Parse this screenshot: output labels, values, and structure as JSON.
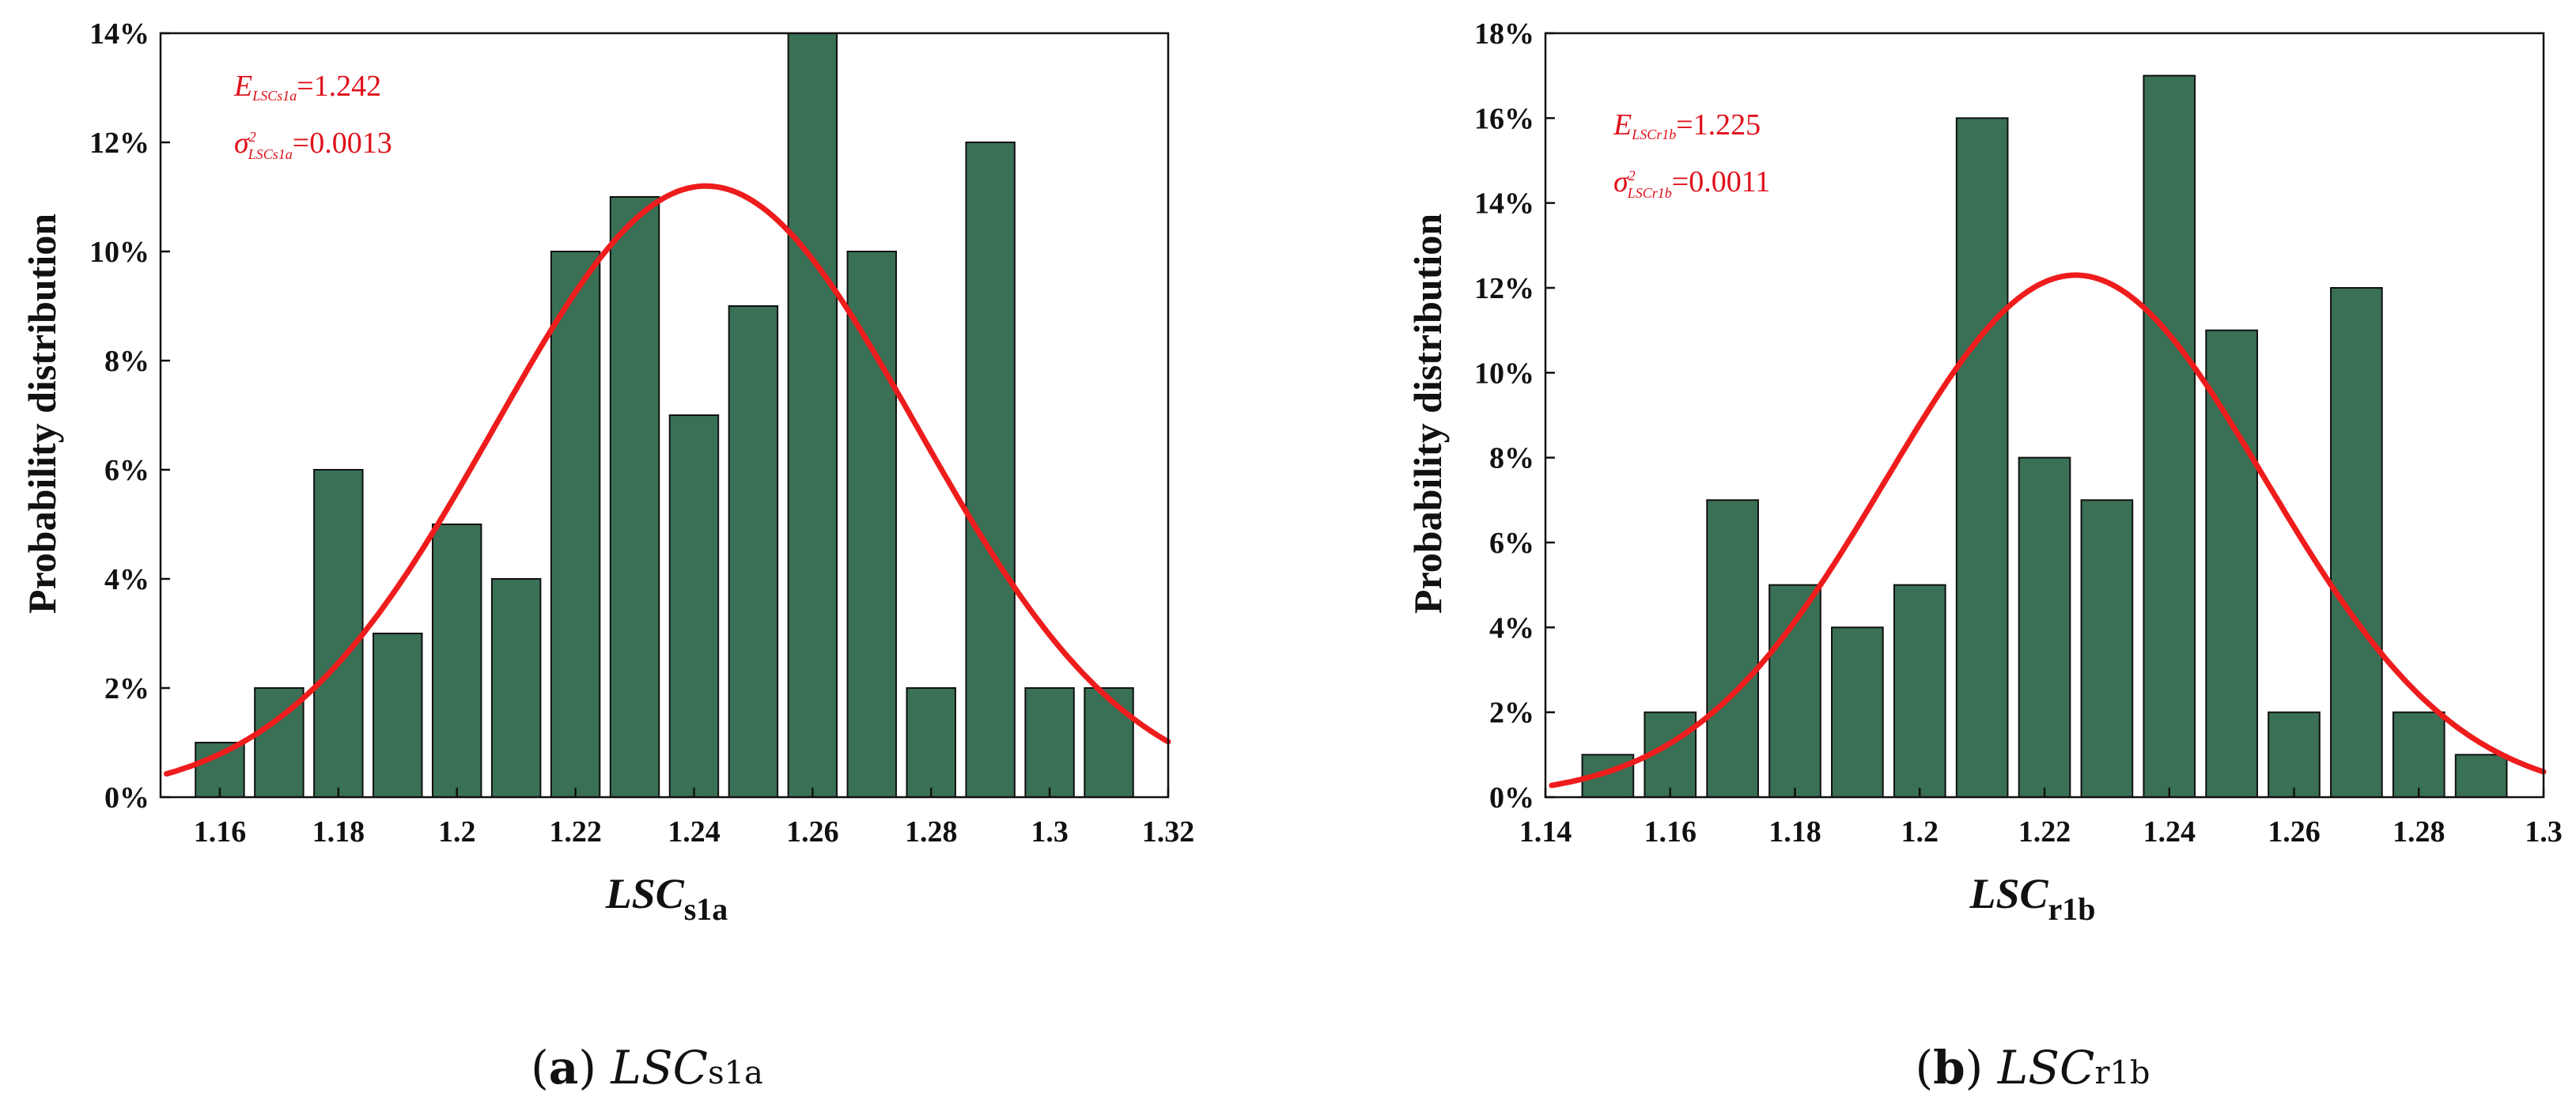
{
  "colors": {
    "bar": "#3a7055",
    "bar_edge": "#111111",
    "curve": "#ee1c1c",
    "stat_text": "#e0101a"
  },
  "chart_data": [
    {
      "type": "bar",
      "ylabel": "Probability distribution",
      "xlabel": {
        "main": "LSC",
        "sub": "s1a"
      },
      "caption": {
        "tag": "a",
        "main": "LSC",
        "sub": "s1a"
      },
      "stats": {
        "mean_symbol": "E",
        "mean_sub": "LSCs1a",
        "mean_value": "=1.242",
        "var_symbol": "σ",
        "var_sup": "2",
        "var_sub": "LSCs1a",
        "var_value": "=0.0013"
      },
      "xlim": [
        1.15,
        1.32
      ],
      "ylim": [
        0,
        14
      ],
      "xticks": [
        1.16,
        1.18,
        1.2,
        1.22,
        1.24,
        1.26,
        1.28,
        1.3,
        1.32
      ],
      "xtick_labels": [
        "1.16",
        "1.18",
        "1.2",
        "1.22",
        "1.24",
        "1.26",
        "1.28",
        "1.3",
        "1.32"
      ],
      "yticks": [
        0,
        2,
        4,
        6,
        8,
        10,
        12,
        14
      ],
      "ytick_labels": [
        "0%",
        "2%",
        "4%",
        "6%",
        "8%",
        "10%",
        "12%",
        "14%"
      ],
      "bin_width": 0.01,
      "bar_width": 0.0082,
      "x": [
        1.16,
        1.17,
        1.18,
        1.19,
        1.2,
        1.21,
        1.22,
        1.23,
        1.24,
        1.25,
        1.26,
        1.27,
        1.28,
        1.29,
        1.3,
        1.31
      ],
      "values": [
        1,
        2,
        6,
        3,
        5,
        4,
        10,
        11,
        7,
        9,
        14,
        10,
        2,
        12,
        2,
        2
      ],
      "fit": {
        "mean": 1.242,
        "sd": 0.0356,
        "peak": 11.2,
        "x_range": [
          1.151,
          1.32
        ]
      }
    },
    {
      "type": "bar",
      "ylabel": "Probability distribution",
      "xlabel": {
        "main": "LSC",
        "sub": "r1b"
      },
      "caption": {
        "tag": "b",
        "main": "LSC",
        "sub": "r1b"
      },
      "stats": {
        "mean_symbol": "E",
        "mean_sub": "LSCr1b",
        "mean_value": "=1.225",
        "var_symbol": "σ",
        "var_sup": "2",
        "var_sub": "LSCr1b",
        "var_value": "=0.0011"
      },
      "xlim": [
        1.14,
        1.3
      ],
      "ylim": [
        0,
        18
      ],
      "xticks": [
        1.14,
        1.16,
        1.18,
        1.2,
        1.22,
        1.24,
        1.26,
        1.28,
        1.3
      ],
      "xtick_labels": [
        "1.14",
        "1.16",
        "1.18",
        "1.2",
        "1.22",
        "1.24",
        "1.26",
        "1.28",
        "1.3"
      ],
      "yticks": [
        0,
        2,
        4,
        6,
        8,
        10,
        12,
        14,
        16,
        18
      ],
      "ytick_labels": [
        "0%",
        "2%",
        "4%",
        "6%",
        "8%",
        "10%",
        "12%",
        "14%",
        "16%",
        "18%"
      ],
      "bin_width": 0.01,
      "bar_width": 0.0082,
      "x": [
        1.15,
        1.16,
        1.17,
        1.18,
        1.19,
        1.2,
        1.21,
        1.22,
        1.23,
        1.24,
        1.25,
        1.26,
        1.27,
        1.28,
        1.29
      ],
      "values": [
        1,
        2,
        7,
        5,
        4,
        5,
        16,
        8,
        7,
        17,
        11,
        2,
        12,
        2,
        1
      ],
      "fit": {
        "mean": 1.225,
        "sd": 0.0305,
        "peak": 12.3,
        "x_range": [
          1.141,
          1.3
        ]
      }
    }
  ]
}
